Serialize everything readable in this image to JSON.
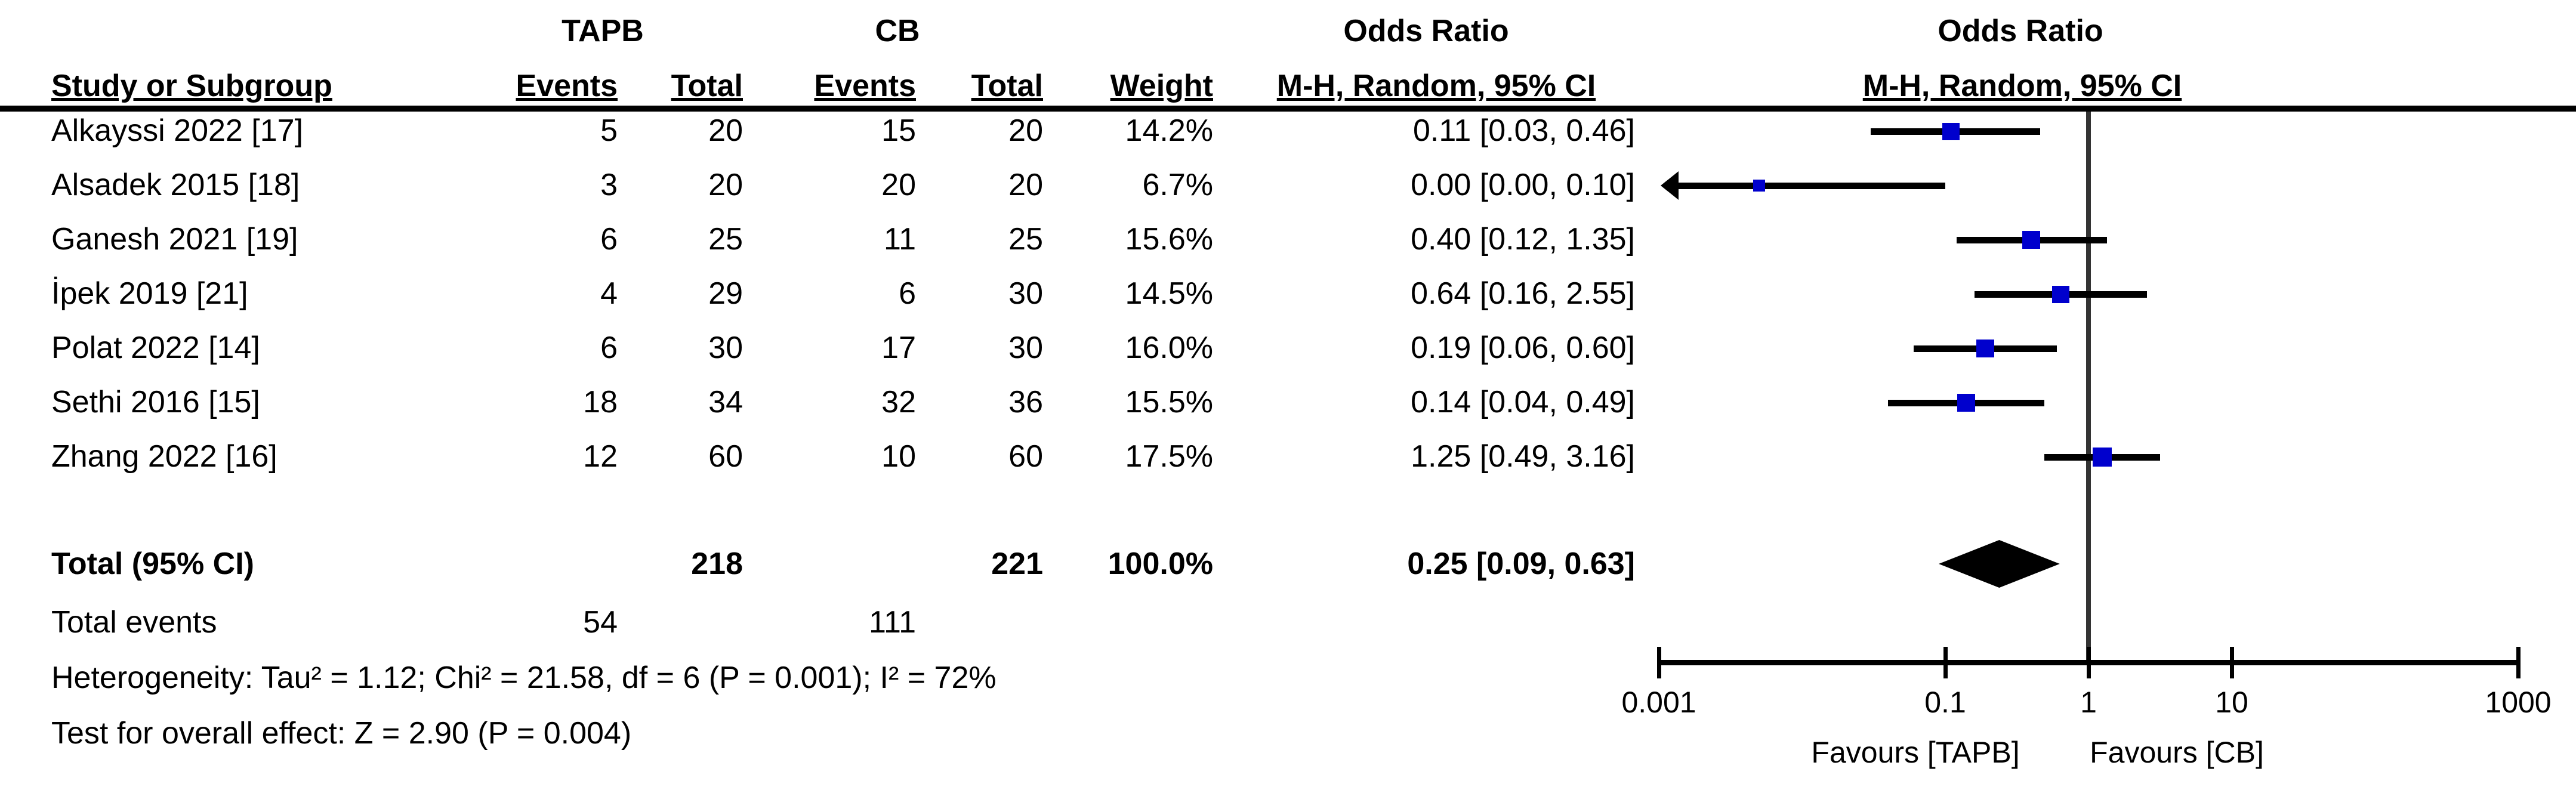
{
  "chart_data": {
    "type": "forest",
    "effect_measure": "Odds Ratio",
    "method": "M-H, Random, 95% CI",
    "headers": {
      "group1": "TAPB",
      "group2": "CB",
      "or_left": "Odds Ratio",
      "or_right": "Odds Ratio",
      "study": "Study or Subgroup",
      "events1": "Events",
      "total1": "Total",
      "events2": "Events",
      "total2": "Total",
      "weight": "Weight",
      "mh_left": "M-H, Random, 95% CI",
      "mh_right": "M-H, Random, 95% CI"
    },
    "studies": [
      {
        "name": "Alkayssi 2022 [17]",
        "events1": "5",
        "total1": "20",
        "events2": "15",
        "total2": "20",
        "weight": "14.2%",
        "weight_frac": 0.142,
        "or_label": "0.11 [0.03, 0.46]",
        "point": 0.11,
        "lo": 0.03,
        "hi": 0.46,
        "arrow_left": false
      },
      {
        "name": "Alsadek 2015 [18]",
        "events1": "3",
        "total1": "20",
        "events2": "20",
        "total2": "20",
        "weight": "6.7%",
        "weight_frac": 0.067,
        "or_label": "0.00 [0.00, 0.10]",
        "point": 0.005,
        "lo": null,
        "hi": 0.1,
        "arrow_left": true
      },
      {
        "name": "Ganesh 2021 [19]",
        "events1": "6",
        "total1": "25",
        "events2": "11",
        "total2": "25",
        "weight": "15.6%",
        "weight_frac": 0.156,
        "or_label": "0.40 [0.12, 1.35]",
        "point": 0.4,
        "lo": 0.12,
        "hi": 1.35,
        "arrow_left": false
      },
      {
        "name": "İpek 2019 [21]",
        "events1": "4",
        "total1": "29",
        "events2": "6",
        "total2": "30",
        "weight": "14.5%",
        "weight_frac": 0.145,
        "or_label": "0.64 [0.16, 2.55]",
        "point": 0.64,
        "lo": 0.16,
        "hi": 2.55,
        "arrow_left": false
      },
      {
        "name": "Polat 2022 [14]",
        "events1": "6",
        "total1": "30",
        "events2": "17",
        "total2": "30",
        "weight": "16.0%",
        "weight_frac": 0.16,
        "or_label": "0.19 [0.06, 0.60]",
        "point": 0.19,
        "lo": 0.06,
        "hi": 0.6,
        "arrow_left": false
      },
      {
        "name": "Sethi 2016 [15]",
        "events1": "18",
        "total1": "34",
        "events2": "32",
        "total2": "36",
        "weight": "15.5%",
        "weight_frac": 0.155,
        "or_label": "0.14 [0.04, 0.49]",
        "point": 0.14,
        "lo": 0.04,
        "hi": 0.49,
        "arrow_left": false
      },
      {
        "name": "Zhang 2022 [16]",
        "events1": "12",
        "total1": "60",
        "events2": "10",
        "total2": "60",
        "weight": "17.5%",
        "weight_frac": 0.175,
        "or_label": "1.25 [0.49, 3.16]",
        "point": 1.25,
        "lo": 0.49,
        "hi": 3.16,
        "arrow_left": false
      }
    ],
    "total": {
      "label": "Total (95% CI)",
      "total1": "218",
      "total2": "221",
      "weight": "100.0%",
      "or_label": "0.25 [0.09, 0.63]",
      "point": 0.25,
      "lo": 0.09,
      "hi": 0.63
    },
    "total_events": {
      "label": "Total events",
      "events1": "54",
      "events2": "111"
    },
    "heterogeneity": "Heterogeneity: Tau² = 1.12; Chi² = 21.58, df = 6 (P = 0.001); I² = 72%",
    "overall_effect": "Test for overall effect: Z = 2.90 (P = 0.004)",
    "axis": {
      "scale": "log",
      "min": 0.001,
      "max": 1000,
      "ticks": [
        0.001,
        0.1,
        1,
        10,
        1000
      ],
      "tick_labels": [
        "0.001",
        "0.1",
        "1",
        "10",
        "1000"
      ]
    },
    "footer_left": "Favours [TAPB]",
    "footer_right": "Favours [CB]",
    "colors": {
      "square": "#0000CD",
      "ci_line": "#000000",
      "diamond": "#000000",
      "null_line": "#333333",
      "axis": "#000000"
    }
  }
}
